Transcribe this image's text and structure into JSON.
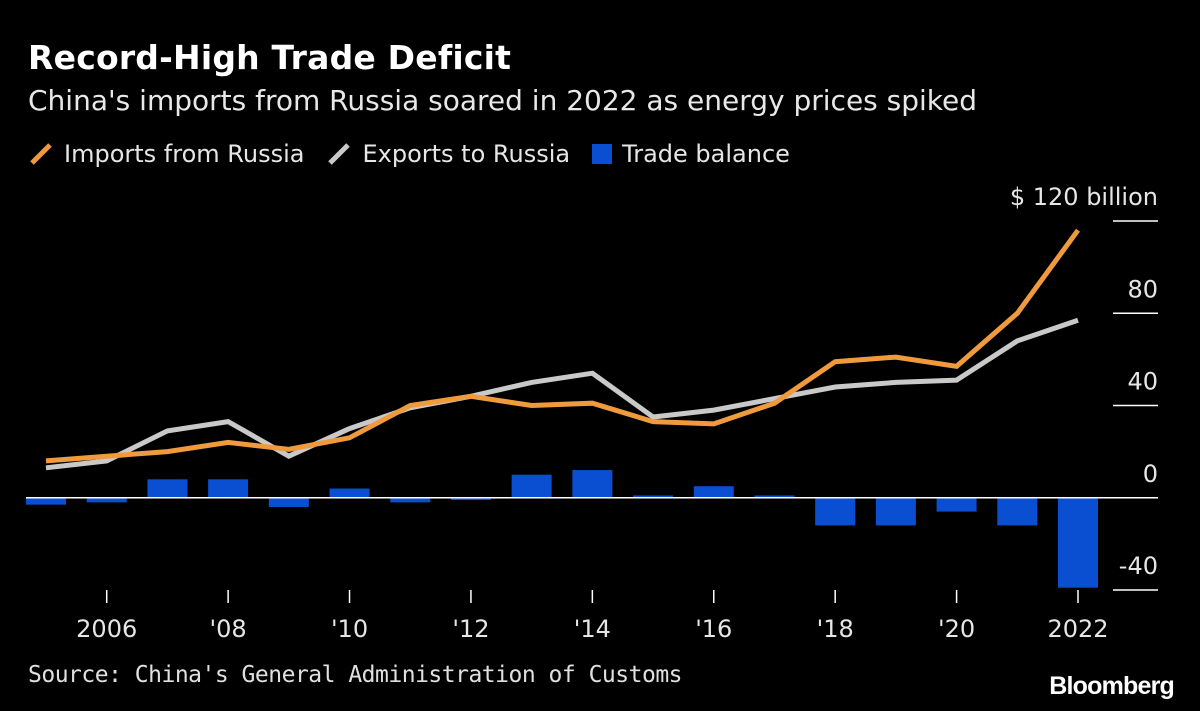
{
  "header": {
    "title": "Record-High Trade Deficit",
    "subtitle": "China's imports from Russia soared in 2022 as energy prices spiked"
  },
  "legend": {
    "imports_label": "Imports from Russia",
    "exports_label": "Exports to Russia",
    "balance_label": "Trade balance"
  },
  "footer": {
    "source": "Source: China's General Administration of Customs",
    "brand": "Bloomberg"
  },
  "colors": {
    "imports": "#ef9a3c",
    "exports": "#c9c9c9",
    "balance": "#0a4fd1",
    "axis": "#ffffff"
  },
  "chart_data": {
    "type": "line",
    "title": "Record-High Trade Deficit",
    "subtitle": "China's imports from Russia soared in 2022 as energy prices spiked",
    "x": [
      2005,
      2006,
      2007,
      2008,
      2009,
      2010,
      2011,
      2012,
      2013,
      2014,
      2015,
      2016,
      2017,
      2018,
      2019,
      2020,
      2021,
      2022
    ],
    "x_tick_values": [
      2006,
      2008,
      2010,
      2012,
      2014,
      2016,
      2018,
      2020,
      2022
    ],
    "x_tick_labels": [
      "2006",
      "'08",
      "'10",
      "'12",
      "'14",
      "'16",
      "'18",
      "'20",
      "2022"
    ],
    "y_ticks": [
      120,
      80,
      40,
      0,
      -40
    ],
    "y_tick_labels": [
      "$ 120 billion",
      "80",
      "40",
      "0",
      "-40"
    ],
    "ylim": [
      -40,
      120
    ],
    "series": [
      {
        "name": "Imports from Russia",
        "type": "line",
        "values": [
          16,
          18,
          20,
          24,
          21,
          26,
          40,
          44,
          40,
          41,
          33,
          32,
          41,
          59,
          61,
          57,
          80,
          116
        ]
      },
      {
        "name": "Exports to Russia",
        "type": "line",
        "values": [
          13,
          16,
          29,
          33,
          18,
          30,
          39,
          44,
          50,
          54,
          35,
          38,
          43,
          48,
          50,
          51,
          68,
          77
        ]
      },
      {
        "name": "Trade balance",
        "type": "bar",
        "values": [
          -3,
          -2,
          8,
          8,
          -4,
          4,
          -2,
          -1,
          10,
          12,
          1,
          5,
          1,
          -12,
          -12,
          -6,
          -12,
          -39
        ]
      }
    ]
  }
}
